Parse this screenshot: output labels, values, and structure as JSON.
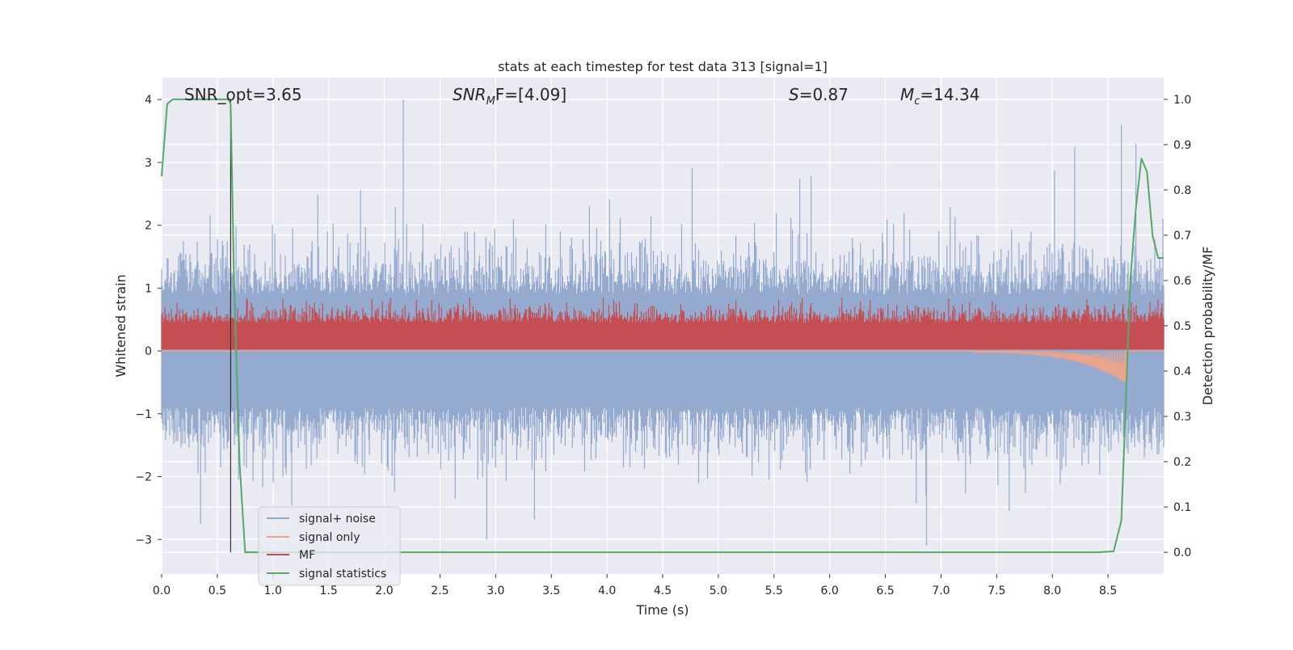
{
  "chart_data": {
    "type": "line",
    "title": "stats at each timestep for test data 313 [signal=1]",
    "xlabel": "Time (s)",
    "ylabel_left": "Whitened strain",
    "ylabel_right": "Detection probability/MF",
    "xlim": [
      0.0,
      9.0
    ],
    "ylim_left": [
      -3.55,
      4.35
    ],
    "ylim_right": [
      -0.048,
      1.048
    ],
    "x_ticks": [
      0.0,
      0.5,
      1.0,
      1.5,
      2.0,
      2.5,
      3.0,
      3.5,
      4.0,
      4.5,
      5.0,
      5.5,
      6.0,
      6.5,
      7.0,
      7.5,
      8.0,
      8.5
    ],
    "x_tick_labels": [
      "0.0",
      "0.5",
      "1.0",
      "1.5",
      "2.0",
      "2.5",
      "3.0",
      "3.5",
      "4.0",
      "4.5",
      "5.0",
      "5.5",
      "6.0",
      "6.5",
      "7.0",
      "7.5",
      "8.0",
      "8.5"
    ],
    "y_left_ticks": [
      -3,
      -2,
      -1,
      0,
      1,
      2,
      3,
      4
    ],
    "y_left_tick_labels": [
      "−3",
      "−2",
      "−1",
      "0",
      "1",
      "2",
      "3",
      "4"
    ],
    "y_right_ticks": [
      0.0,
      0.1,
      0.2,
      0.3,
      0.4,
      0.5,
      0.6,
      0.7,
      0.8,
      0.9,
      1.0
    ],
    "y_right_tick_labels": [
      "0.0",
      "0.1",
      "0.2",
      "0.3",
      "0.4",
      "0.5",
      "0.6",
      "0.7",
      "0.8",
      "0.9",
      "1.0"
    ],
    "grid": true,
    "legend_position": "lower-left",
    "annotations": {
      "snr_opt": "SNR_opt=3.65",
      "snr_mf_base": "SNR",
      "snr_mf_sub": "M",
      "snr_mf_tail": "F=[4.09]",
      "s_label": "S",
      "s_value": "=0.87",
      "mc_base": "M",
      "mc_sub": "c",
      "mc_value": "=14.34"
    },
    "marker_time": 0.62,
    "series": [
      {
        "name": "signal+ noise",
        "color": "#8fa6cc",
        "axis": "left",
        "description_values": {
          "typical_range": [
            -2.2,
            2.4
          ],
          "extremes": [
            -3.1,
            4.0
          ]
        }
      },
      {
        "name": "signal only",
        "color": "#e8a48c",
        "axis": "left",
        "values_note": [
          [
            0.0,
            0.0
          ],
          [
            7.5,
            0.0
          ],
          [
            8.2,
            -0.12
          ],
          [
            8.5,
            -0.3
          ],
          [
            8.62,
            -0.7
          ],
          [
            8.66,
            0.0
          ]
        ]
      },
      {
        "name": "MF",
        "color": "#c44e52",
        "axis": "left",
        "typical_range": [
          0.0,
          0.85
        ]
      },
      {
        "name": "signal statistics",
        "color": "#55a868",
        "axis": "right",
        "x": [
          0.0,
          0.05,
          0.1,
          0.2,
          0.3,
          0.4,
          0.5,
          0.6,
          0.62,
          0.65,
          0.7,
          0.75,
          0.8,
          1.0,
          2.0,
          3.0,
          4.0,
          5.0,
          6.0,
          7.0,
          8.0,
          8.4,
          8.55,
          8.62,
          8.7,
          8.75,
          8.8,
          8.85,
          8.9,
          8.95,
          9.0
        ],
        "y": [
          0.83,
          0.99,
          1.0,
          1.0,
          1.0,
          1.0,
          1.0,
          1.0,
          0.99,
          0.6,
          0.2,
          0.0,
          0.0,
          0.0,
          0.0,
          0.0,
          0.0,
          0.0,
          0.0,
          0.0,
          0.0,
          0.0,
          0.002,
          0.07,
          0.6,
          0.76,
          0.87,
          0.84,
          0.7,
          0.65,
          0.65
        ]
      }
    ]
  }
}
